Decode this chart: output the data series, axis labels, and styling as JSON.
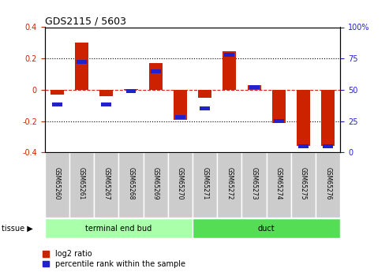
{
  "title": "GDS2115 / 5603",
  "samples": [
    "GSM65260",
    "GSM65261",
    "GSM65267",
    "GSM65268",
    "GSM65269",
    "GSM65270",
    "GSM65271",
    "GSM65272",
    "GSM65273",
    "GSM65274",
    "GSM65275",
    "GSM65276"
  ],
  "log2_ratio": [
    -0.03,
    0.3,
    -0.04,
    0.005,
    0.17,
    -0.19,
    -0.05,
    0.245,
    0.03,
    -0.21,
    -0.36,
    -0.36
  ],
  "percentile_rank": [
    38,
    72,
    38,
    49,
    65,
    28,
    35,
    78,
    52,
    25,
    5,
    5
  ],
  "groups": [
    {
      "label": "terminal end bud",
      "start": 0,
      "end": 6,
      "color": "#aaffaa"
    },
    {
      "label": "duct",
      "start": 6,
      "end": 12,
      "color": "#55dd55"
    }
  ],
  "ylim_left": [
    -0.4,
    0.4
  ],
  "ylim_right": [
    0,
    100
  ],
  "bar_color_red": "#cc2200",
  "bar_color_blue": "#2222cc",
  "zero_line_color": "#dd2222",
  "grid_color": "#000000",
  "background_plot": "#ffffff",
  "tissue_label": "tissue",
  "legend_red": "log2 ratio",
  "legend_blue": "percentile rank within the sample",
  "left_ticks": [
    0.4,
    0.2,
    0.0,
    -0.2,
    -0.4
  ],
  "left_tick_labels": [
    "0.4",
    "0.2",
    "0",
    "-0.2",
    "-0.4"
  ],
  "right_ticks": [
    0,
    25,
    50,
    75,
    100
  ],
  "right_tick_labels": [
    "0",
    "25",
    "50",
    "75",
    "100%"
  ]
}
